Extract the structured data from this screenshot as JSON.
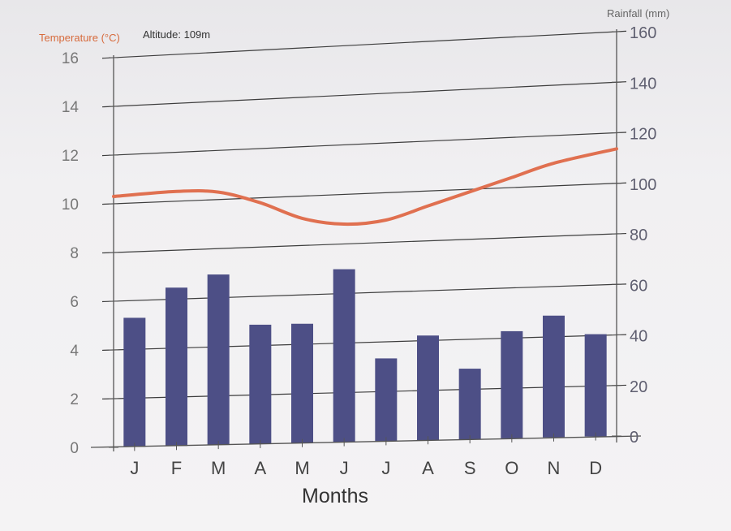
{
  "chart_data": {
    "type": "bar+line",
    "altitude_label": "Altitude: 109m",
    "xlabel": "Months",
    "categories": [
      "J",
      "F",
      "M",
      "A",
      "M",
      "J",
      "J",
      "A",
      "S",
      "O",
      "N",
      "D"
    ],
    "temperature": {
      "label": "Temperature (°C)",
      "axis": "left",
      "ylim": [
        0,
        16
      ],
      "ticks": [
        "0",
        "2",
        "4",
        "6",
        "8",
        "10",
        "12",
        "14",
        "16"
      ],
      "color": "#e07050",
      "values": [
        10.3,
        10.4,
        10.3,
        9.8,
        9.1,
        8.8,
        8.9,
        9.4,
        9.9,
        10.4,
        10.9,
        11.4
      ]
    },
    "rainfall": {
      "label": "Rainfall (mm)",
      "axis": "right",
      "ylim": [
        0,
        160
      ],
      "ticks": [
        "0",
        "20",
        "40",
        "60",
        "80",
        "100",
        "120",
        "140",
        "160"
      ],
      "color": "#4d4f86",
      "values": [
        53,
        65,
        70,
        49,
        49,
        71,
        34,
        43,
        29,
        44,
        50,
        42
      ]
    }
  }
}
